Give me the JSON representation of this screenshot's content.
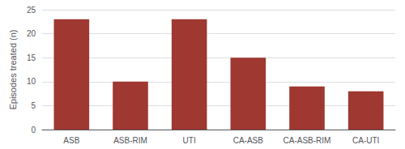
{
  "chart_data": {
    "type": "bar",
    "categories": [
      "ASB",
      "ASB-RIM",
      "UTI",
      "CA-ASB",
      "CA-ASB-RIM",
      "CA-UTI"
    ],
    "values": [
      23,
      10,
      23,
      15,
      9,
      8
    ],
    "color": "#9e3830",
    "ylabel": "Episodes treated (n)",
    "ylim": [
      0,
      25
    ],
    "yticks": [
      0,
      5,
      10,
      15,
      20,
      25
    ],
    "grid": true
  }
}
